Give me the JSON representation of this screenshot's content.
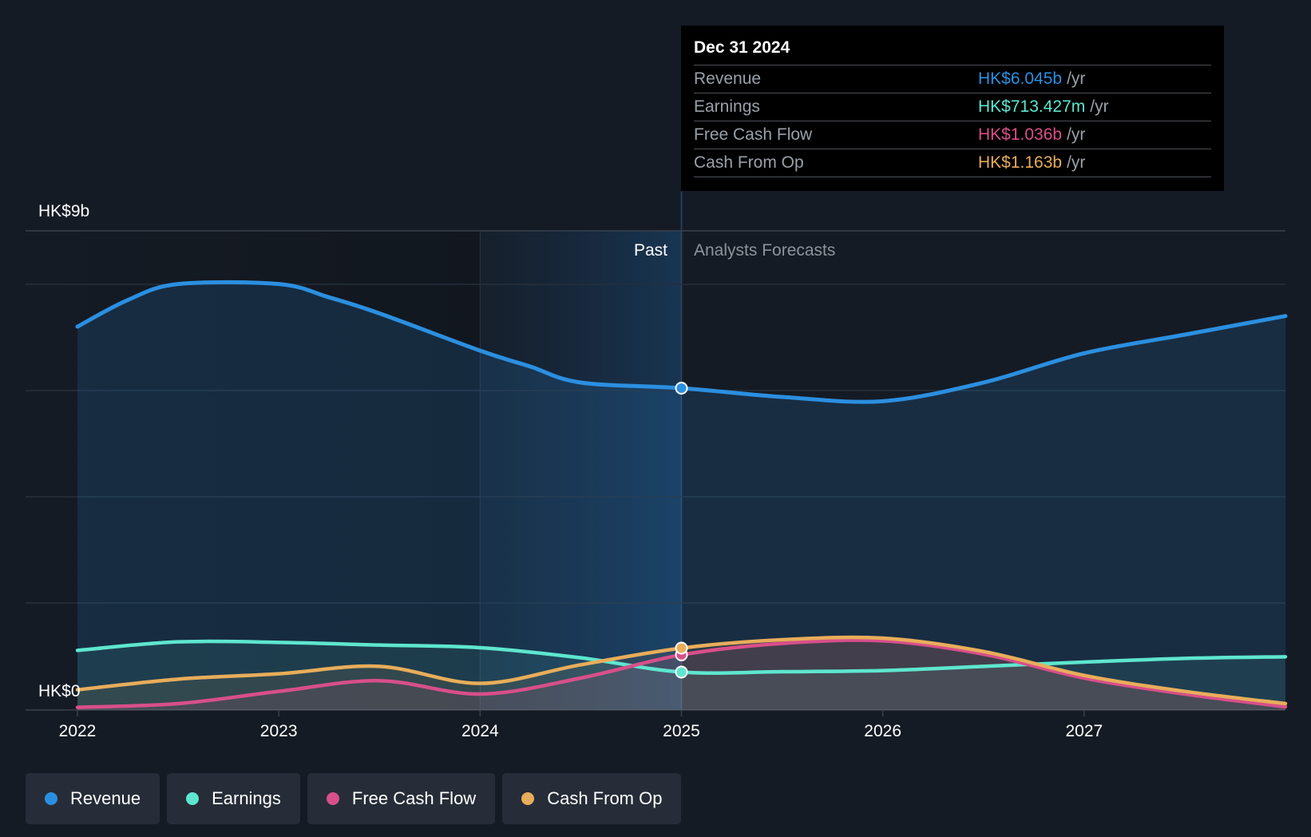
{
  "chart_data": {
    "type": "area",
    "y_axis": {
      "top_label": "HK$9b",
      "bottom_label": "HK$0",
      "ylim": [
        0,
        9
      ]
    },
    "x_ticks": [
      "2022",
      "2023",
      "2024",
      "2025",
      "2026",
      "2027"
    ],
    "xlim": [
      2022,
      2028
    ],
    "past_label": "Past",
    "forecast_label": "Analysts Forecasts",
    "past_highlight_start": 2024,
    "divider_x": 2025,
    "series": [
      {
        "name": "Revenue",
        "color": "#2b8fe0",
        "points": [
          [
            2022,
            7.2
          ],
          [
            2022.25,
            7.7
          ],
          [
            2022.5,
            8.0
          ],
          [
            2023,
            8.0
          ],
          [
            2023.25,
            7.75
          ],
          [
            2023.5,
            7.45
          ],
          [
            2024,
            6.75
          ],
          [
            2024.25,
            6.45
          ],
          [
            2024.5,
            6.15
          ],
          [
            2025,
            6.045
          ],
          [
            2025.5,
            5.88
          ],
          [
            2026,
            5.8
          ],
          [
            2026.5,
            6.15
          ],
          [
            2027,
            6.7
          ],
          [
            2027.5,
            7.05
          ],
          [
            2028,
            7.4
          ]
        ]
      },
      {
        "name": "Earnings",
        "color": "#5ee6cf",
        "points": [
          [
            2022,
            1.12
          ],
          [
            2022.5,
            1.28
          ],
          [
            2023,
            1.27
          ],
          [
            2023.5,
            1.22
          ],
          [
            2024,
            1.17
          ],
          [
            2024.5,
            0.98
          ],
          [
            2025,
            0.713
          ],
          [
            2025.5,
            0.72
          ],
          [
            2026,
            0.74
          ],
          [
            2026.5,
            0.82
          ],
          [
            2027,
            0.9
          ],
          [
            2027.5,
            0.97
          ],
          [
            2028,
            1.0
          ]
        ]
      },
      {
        "name": "Free Cash Flow",
        "color": "#d84f8a",
        "points": [
          [
            2022,
            0.05
          ],
          [
            2022.5,
            0.12
          ],
          [
            2023,
            0.35
          ],
          [
            2023.5,
            0.55
          ],
          [
            2024,
            0.3
          ],
          [
            2024.5,
            0.6
          ],
          [
            2025,
            1.036
          ],
          [
            2025.5,
            1.25
          ],
          [
            2026,
            1.3
          ],
          [
            2026.5,
            1.05
          ],
          [
            2027,
            0.6
          ],
          [
            2027.5,
            0.3
          ],
          [
            2028,
            0.06
          ]
        ]
      },
      {
        "name": "Cash From Op",
        "color": "#e8ad5a",
        "points": [
          [
            2022,
            0.38
          ],
          [
            2022.5,
            0.58
          ],
          [
            2023,
            0.68
          ],
          [
            2023.5,
            0.82
          ],
          [
            2024,
            0.5
          ],
          [
            2024.5,
            0.85
          ],
          [
            2025,
            1.163
          ],
          [
            2025.5,
            1.32
          ],
          [
            2026,
            1.35
          ],
          [
            2026.5,
            1.1
          ],
          [
            2027,
            0.65
          ],
          [
            2027.5,
            0.35
          ],
          [
            2028,
            0.12
          ]
        ]
      }
    ]
  },
  "tooltip": {
    "date": "Dec 31 2024",
    "rows": [
      {
        "label": "Revenue",
        "value": "HK$6.045b",
        "unit": "/yr",
        "color": "#2b8fe0"
      },
      {
        "label": "Earnings",
        "value": "HK$713.427m",
        "unit": "/yr",
        "color": "#5ee6cf"
      },
      {
        "label": "Free Cash Flow",
        "value": "HK$1.036b",
        "unit": "/yr",
        "color": "#d84f8a"
      },
      {
        "label": "Cash From Op",
        "value": "HK$1.163b",
        "unit": "/yr",
        "color": "#e8ad5a"
      }
    ]
  },
  "legend": [
    {
      "label": "Revenue",
      "color": "#2b8fe0"
    },
    {
      "label": "Earnings",
      "color": "#5ee6cf"
    },
    {
      "label": "Free Cash Flow",
      "color": "#d84f8a"
    },
    {
      "label": "Cash From Op",
      "color": "#e8ad5a"
    }
  ]
}
